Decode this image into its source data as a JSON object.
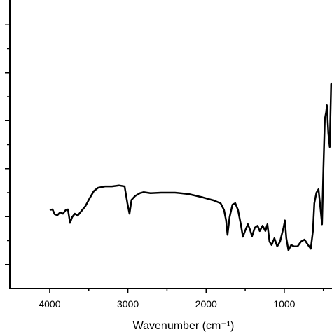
{
  "chart_data": {
    "type": "line",
    "xlabel": "Wavenumber (cm⁻¹)",
    "xlim": [
      4510,
      390
    ],
    "xticks": [
      4000,
      3000,
      2000,
      1000
    ],
    "xminor": [
      3500,
      2500,
      1500,
      500
    ],
    "ylim": [
      0,
      6
    ],
    "yticks": [
      0.5,
      1.5,
      2.5,
      3.5,
      4.5,
      5.5
    ],
    "yminor": [
      1,
      2,
      3,
      4,
      5
    ],
    "series": [
      {
        "color": "#000000",
        "x": [
          4000,
          3964,
          3937,
          3902,
          3866,
          3830,
          3794,
          3767,
          3740,
          3713,
          3678,
          3642,
          3597,
          3543,
          3490,
          3436,
          3382,
          3293,
          3203,
          3114,
          3042,
          3006,
          2979,
          2953,
          2908,
          2845,
          2800,
          2711,
          2576,
          2397,
          2218,
          2039,
          1905,
          1815,
          1771,
          1744,
          1726,
          1699,
          1663,
          1627,
          1592,
          1556,
          1529,
          1502,
          1466,
          1439,
          1413,
          1377,
          1341,
          1314,
          1278,
          1242,
          1216,
          1189,
          1162,
          1126,
          1090,
          1055,
          1010,
          992,
          974,
          947,
          911,
          875,
          831,
          786,
          741,
          696,
          661,
          634,
          616,
          589,
          562,
          535,
          517,
          499,
          481,
          464,
          455,
          437,
          419,
          401,
          392
        ],
        "values": [
          1.64,
          1.65,
          1.55,
          1.53,
          1.59,
          1.56,
          1.64,
          1.65,
          1.37,
          1.49,
          1.56,
          1.52,
          1.61,
          1.72,
          1.88,
          2.03,
          2.1,
          2.13,
          2.13,
          2.15,
          2.13,
          1.78,
          1.56,
          1.85,
          1.93,
          1.99,
          2.01,
          1.99,
          2.0,
          2.0,
          1.97,
          1.9,
          1.84,
          1.78,
          1.64,
          1.42,
          1.12,
          1.49,
          1.75,
          1.78,
          1.64,
          1.34,
          1.08,
          1.2,
          1.34,
          1.23,
          1.09,
          1.27,
          1.31,
          1.2,
          1.31,
          1.2,
          1.34,
          0.98,
          0.91,
          1.05,
          0.88,
          0.98,
          1.27,
          1.42,
          1.05,
          0.8,
          0.91,
          0.88,
          0.88,
          0.98,
          1.02,
          0.91,
          0.83,
          1.2,
          1.78,
          2.0,
          2.07,
          1.64,
          1.34,
          2.51,
          3.53,
          3.68,
          3.82,
          3.24,
          2.95,
          4.26,
          4.29
        ]
      }
    ]
  }
}
